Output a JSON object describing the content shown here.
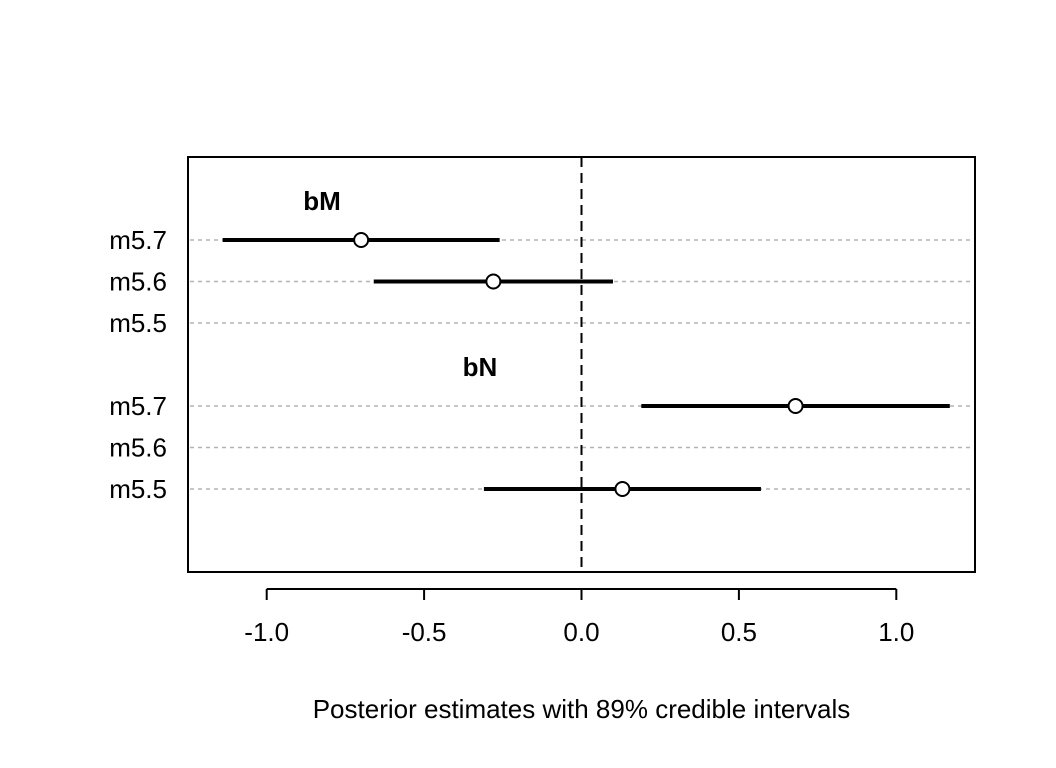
{
  "chart_data": {
    "type": "scatter",
    "subtype": "coefficient-interval-plot",
    "title": "",
    "xlabel": "Posterior estimates with 89% credible intervals",
    "ylabel": "",
    "xlim": [
      -1.25,
      1.25
    ],
    "xticks": [
      -1.0,
      -0.5,
      0.0,
      0.5,
      1.0
    ],
    "xtick_labels": [
      "-1.0",
      "-0.5",
      "0.0",
      "0.5",
      "1.0"
    ],
    "reference_line": {
      "x": 0,
      "style": "dashed"
    },
    "grid": "horizontal dotted gridlines per row",
    "groups": [
      {
        "label": "bM",
        "rows": [
          {
            "model": "m5.7",
            "mean": -0.7,
            "lower": -1.14,
            "upper": -0.26
          },
          {
            "model": "m5.6",
            "mean": -0.28,
            "lower": -0.66,
            "upper": 0.1
          },
          {
            "model": "m5.5",
            "mean": null,
            "lower": null,
            "upper": null
          }
        ]
      },
      {
        "label": "bN",
        "rows": [
          {
            "model": "m5.7",
            "mean": 0.68,
            "lower": 0.19,
            "upper": 1.17
          },
          {
            "model": "m5.6",
            "mean": null,
            "lower": null,
            "upper": null
          },
          {
            "model": "m5.5",
            "mean": 0.13,
            "lower": -0.31,
            "upper": 0.57
          }
        ]
      }
    ]
  }
}
